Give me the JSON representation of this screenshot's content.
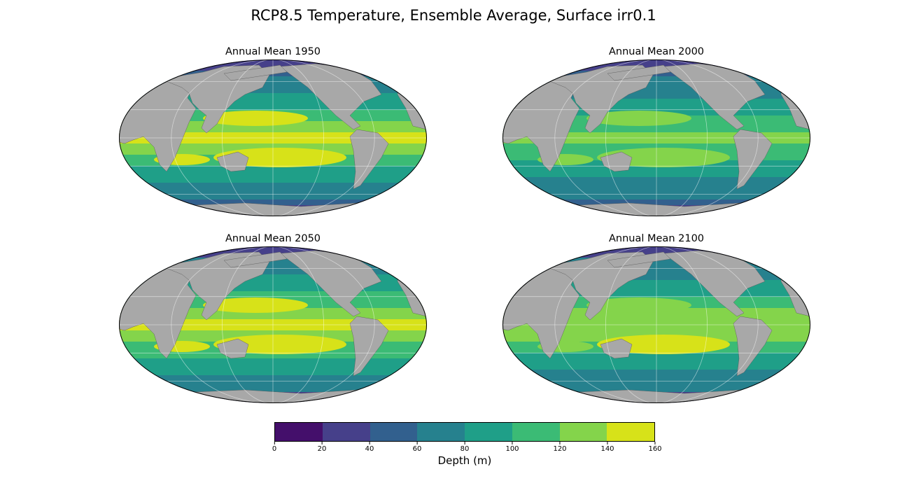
{
  "title": "RCP8.5 Temperature, Ensemble Average, Surface irr0.1",
  "panels": [
    {
      "title": "Annual Mean 1950",
      "equatorial_peak": 145,
      "high_lat_value": 50
    },
    {
      "title": "Annual Mean 2000",
      "equatorial_peak": 132,
      "high_lat_value": 50
    },
    {
      "title": "Annual Mean 2050",
      "equatorial_peak": 148,
      "high_lat_value": 55
    },
    {
      "title": "Annual Mean 2100",
      "equatorial_peak": 142,
      "high_lat_value": 55
    }
  ],
  "colorbar": {
    "label": "Depth (m)",
    "ticks": [
      "0",
      "20",
      "40",
      "60",
      "80",
      "100",
      "120",
      "140",
      "160"
    ],
    "colors": [
      "#440f6b",
      "#46408a",
      "#32608e",
      "#26818e",
      "#1f9f88",
      "#3bbb75",
      "#84d44b",
      "#d7e219"
    ]
  },
  "land_color": "#a8a8a8"
}
